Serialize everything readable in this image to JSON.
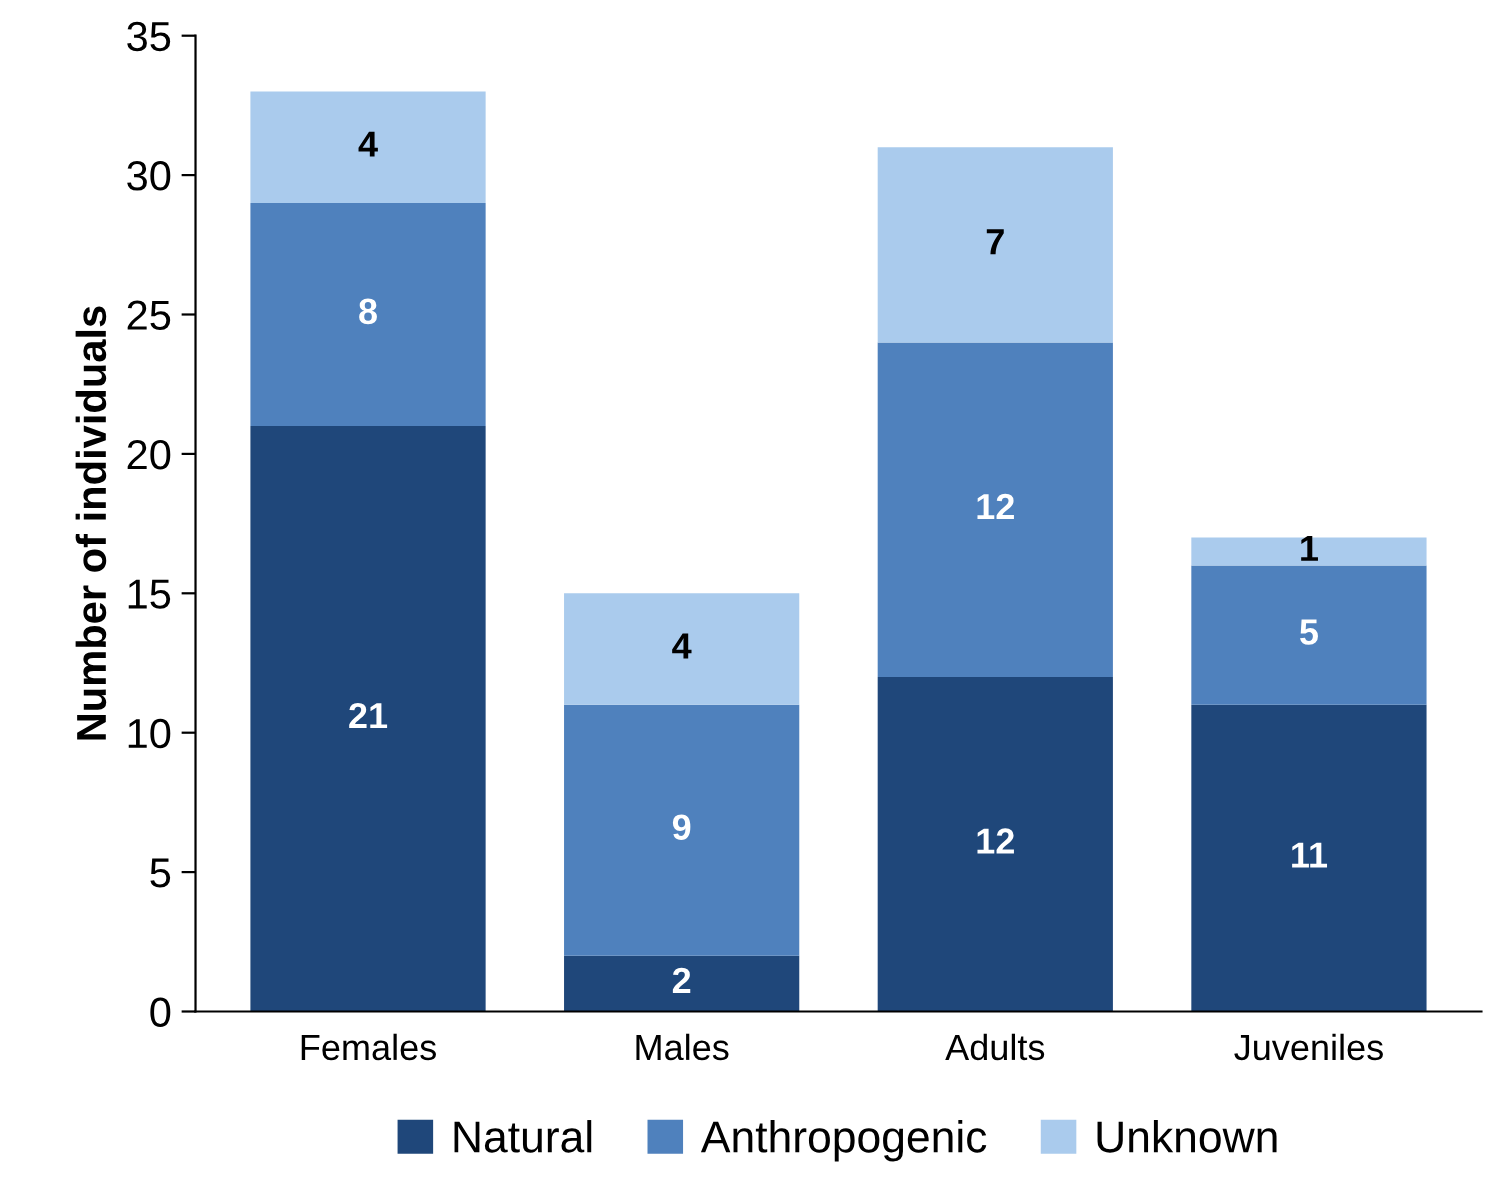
{
  "chart_data": {
    "type": "bar",
    "stacked": true,
    "ylabel": "Number of individuals",
    "categories": [
      "Females",
      "Males",
      "Adults",
      "Juveniles"
    ],
    "series": [
      {
        "name": "Natural",
        "color": "#1f477a",
        "values": [
          21,
          2,
          12,
          11
        ]
      },
      {
        "name": "Anthropogenic",
        "color": "#4f81bd",
        "values": [
          8,
          9,
          12,
          5
        ]
      },
      {
        "name": "Unknown",
        "color": "#aacbed",
        "values": [
          4,
          4,
          7,
          1
        ]
      }
    ],
    "ylim": [
      0,
      35
    ],
    "yticks": [
      0,
      5,
      10,
      15,
      20,
      25,
      30,
      35
    ],
    "data_labels": true,
    "legend": "bottom",
    "grid": false
  }
}
